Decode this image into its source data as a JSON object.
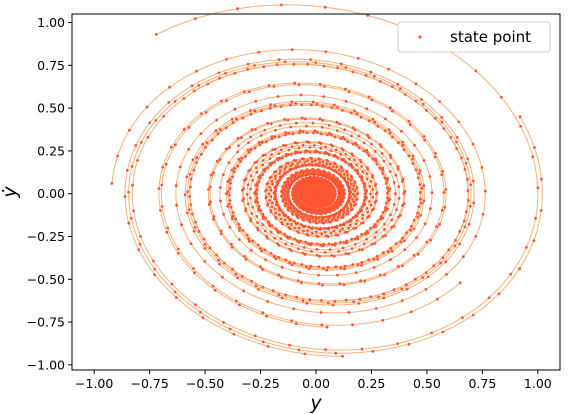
{
  "chart_data": {
    "type": "scatter",
    "xlabel": "y",
    "ylabel": "ẏ",
    "xlim": [
      -1.1,
      1.1
    ],
    "ylim": [
      -1.03,
      1.05
    ],
    "xticks": [
      "−1.00",
      "−0.75",
      "−0.50",
      "−0.25",
      "0.00",
      "0.25",
      "0.50",
      "0.75",
      "1.00"
    ],
    "xtick_values": [
      -1.0,
      -0.75,
      -0.5,
      -0.25,
      0.0,
      0.25,
      0.5,
      0.75,
      1.0
    ],
    "yticks": [
      "−1.00",
      "−0.75",
      "−0.50",
      "−0.25",
      "0.00",
      "0.25",
      "0.50",
      "0.75",
      "1.00"
    ],
    "ytick_values": [
      -1.0,
      -0.75,
      -0.5,
      -0.25,
      0.0,
      0.25,
      0.5,
      0.75,
      1.0
    ],
    "legend": {
      "label": "state point",
      "placement": "top-right"
    },
    "grid": false,
    "colors": {
      "point": "#ff5533",
      "line": "#f5b07a"
    },
    "series": [
      {
        "start": [
          -0.92,
          0.06
        ]
      },
      {
        "start": [
          -0.72,
          0.93
        ]
      },
      {
        "start": [
          0.92,
          0.45
        ]
      },
      {
        "start": [
          0.12,
          -0.95
        ]
      },
      {
        "start": [
          -0.55,
          0.6
        ]
      },
      {
        "start": [
          0.65,
          -0.52
        ]
      },
      {
        "start": [
          0.05,
          -0.78
        ]
      },
      {
        "start": [
          -0.35,
          0.28
        ]
      }
    ]
  }
}
